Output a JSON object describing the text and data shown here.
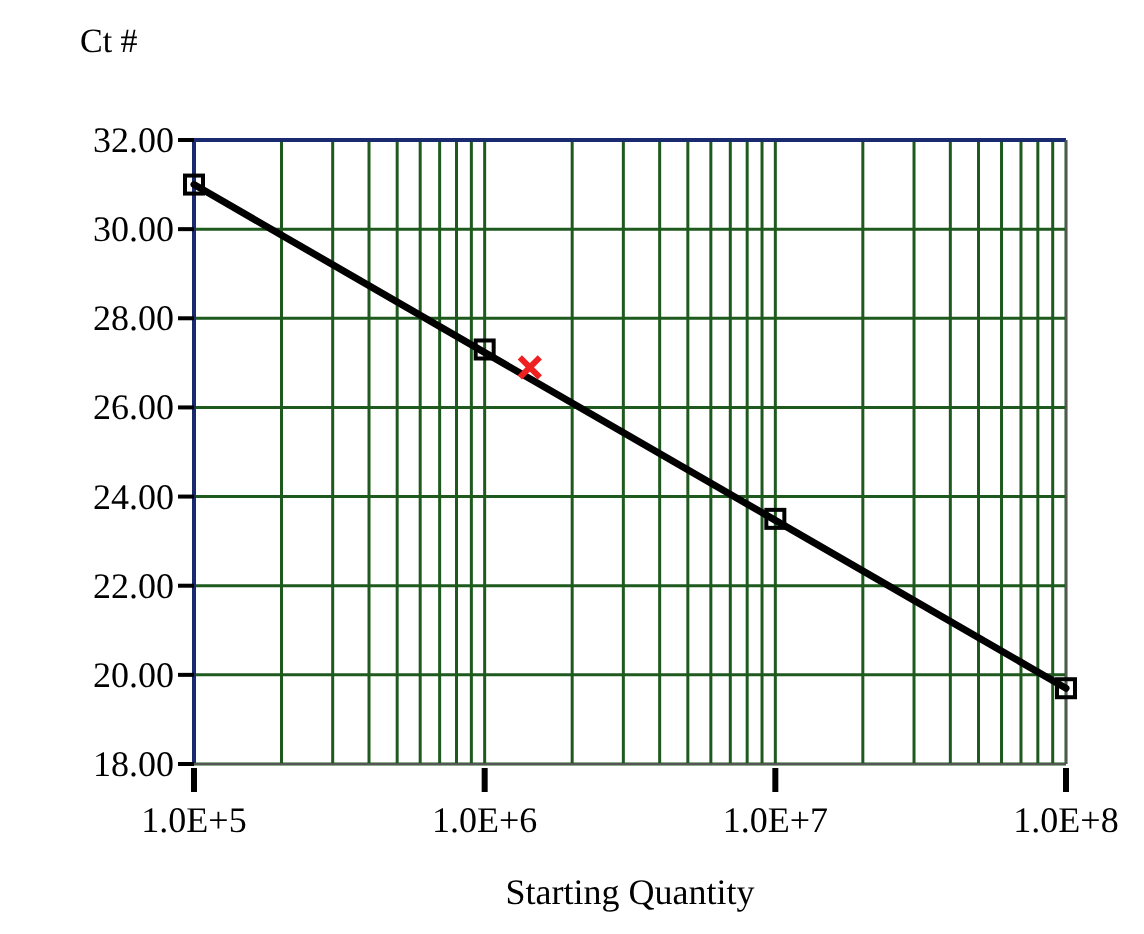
{
  "chart_data": {
    "type": "scatter",
    "xlabel": "Starting Quantity",
    "ylabel": "Ct #",
    "log": "x",
    "grid": true,
    "xlim": [
      100000,
      100000000
    ],
    "ylim": [
      18,
      32
    ],
    "xticks": [
      {
        "value": 100000,
        "label": "1.0E+5"
      },
      {
        "value": 200000,
        "label": null
      },
      {
        "value": 300000,
        "label": null
      },
      {
        "value": 400000,
        "label": null
      },
      {
        "value": 500000,
        "label": null
      },
      {
        "value": 600000,
        "label": null
      },
      {
        "value": 700000,
        "label": null
      },
      {
        "value": 800000,
        "label": null
      },
      {
        "value": 900000,
        "label": null
      },
      {
        "value": 1000000,
        "label": "1.0E+6"
      },
      {
        "value": 2000000,
        "label": null
      },
      {
        "value": 3000000,
        "label": null
      },
      {
        "value": 4000000,
        "label": null
      },
      {
        "value": 5000000,
        "label": null
      },
      {
        "value": 6000000,
        "label": null
      },
      {
        "value": 7000000,
        "label": null
      },
      {
        "value": 8000000,
        "label": null
      },
      {
        "value": 9000000,
        "label": null
      },
      {
        "value": 10000000,
        "label": "1.0E+7"
      },
      {
        "value": 20000000,
        "label": null
      },
      {
        "value": 30000000,
        "label": null
      },
      {
        "value": 40000000,
        "label": null
      },
      {
        "value": 50000000,
        "label": null
      },
      {
        "value": 60000000,
        "label": null
      },
      {
        "value": 70000000,
        "label": null
      },
      {
        "value": 80000000,
        "label": null
      },
      {
        "value": 90000000,
        "label": null
      },
      {
        "value": 100000000,
        "label": "1.0E+8"
      }
    ],
    "yticks": [
      {
        "value": 18,
        "label": "18.00"
      },
      {
        "value": 20,
        "label": "20.00"
      },
      {
        "value": 22,
        "label": "22.00"
      },
      {
        "value": 24,
        "label": "24.00"
      },
      {
        "value": 26,
        "label": "26.00"
      },
      {
        "value": 28,
        "label": "28.00"
      },
      {
        "value": 30,
        "label": "30.00"
      },
      {
        "value": 32,
        "label": "32.00"
      }
    ],
    "series": [
      {
        "type": "line",
        "color": "#000000",
        "x": [
          100000,
          100000000
        ],
        "values": [
          31.0,
          19.7
        ],
        "marker": "none",
        "line_style": "solid"
      },
      {
        "color": "#000000",
        "x": [
          100000,
          1000000,
          10000000,
          100000000
        ],
        "values": [
          31.0,
          27.3,
          23.5,
          19.7
        ],
        "marker": "square"
      },
      {
        "color": "#ee2020",
        "x": [
          1430000
        ],
        "values": [
          26.9
        ],
        "marker": "cross"
      }
    ]
  }
}
